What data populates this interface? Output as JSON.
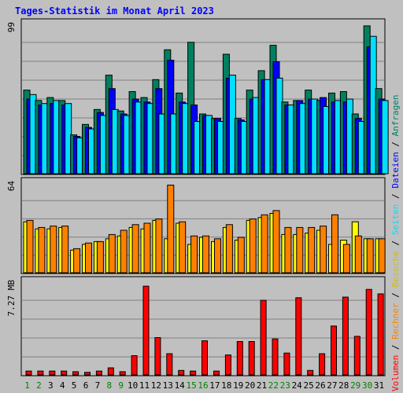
{
  "chart_data": {
    "type": "bar",
    "title": "Tages-Statistik im Monat April 2023",
    "categories": [
      "1",
      "2",
      "3",
      "4",
      "5",
      "6",
      "7",
      "8",
      "9",
      "10",
      "11",
      "12",
      "13",
      "14",
      "15",
      "16",
      "17",
      "18",
      "19",
      "20",
      "21",
      "22",
      "23",
      "24",
      "25",
      "26",
      "27",
      "28",
      "29",
      "30",
      "31"
    ],
    "weekend_categories": [
      "1",
      "2",
      "8",
      "9",
      "15",
      "16",
      "22",
      "23",
      "29",
      "30"
    ],
    "panels": [
      {
        "id": "top",
        "max_label": "99",
        "ylim": [
          0,
          99
        ],
        "series": [
          {
            "name": "Anfragen",
            "color": "#008060",
            "values": [
              56,
              49,
              51,
              49,
              26,
              33,
              43,
              66,
              42,
              55,
              51,
              63,
              83,
              54,
              88,
              40,
              37,
              80,
              37,
              56,
              69,
              86,
              48,
              49,
              56,
              49,
              54,
              55,
              40,
              99,
              57
            ]
          },
          {
            "name": "Dateien",
            "color": "#0000ff",
            "values": [
              50,
              46,
              47,
              46,
              25,
              31,
              41,
              57,
              40,
              50,
              48,
              57,
              76,
              48,
              46,
              39,
              37,
              64,
              36,
              50,
              63,
              75,
              46,
              49,
              50,
              51,
              48,
              48,
              37,
              85,
              50
            ]
          },
          {
            "name": "Seiten",
            "color": "#00e0ff",
            "values": [
              53,
              47,
              49,
              47,
              24,
              30,
              39,
              43,
              39,
              48,
              47,
              40,
              40,
              47,
              35,
              39,
              35,
              66,
              35,
              51,
              63,
              64,
              46,
              47,
              50,
              45,
              49,
              50,
              35,
              92,
              49
            ]
          }
        ]
      },
      {
        "id": "middle",
        "max_label": "64",
        "ylim": [
          0,
          64
        ],
        "series": [
          {
            "name": "Besuche",
            "color": "#ffff00",
            "values": [
              36,
              31,
              31,
              32,
              16,
              20,
              22,
              24,
              26,
              32,
              31,
              37,
              24,
              35,
              20,
              25,
              22,
              32,
              23,
              37,
              39,
              42,
              27,
              27,
              28,
              30,
              20,
              23,
              36,
              24,
              24
            ]
          },
          {
            "name": "Rechner",
            "color": "#ff8000",
            "values": [
              37,
              32,
              33,
              33,
              17,
              21,
              22,
              27,
              30,
              34,
              35,
              38,
              62,
              36,
              26,
              26,
              24,
              34,
              25,
              38,
              41,
              44,
              32,
              32,
              32,
              33,
              41,
              20,
              26,
              24,
              24
            ]
          }
        ]
      },
      {
        "id": "bottom",
        "max_label": "7.27 MB",
        "ylim": [
          0,
          7.27
        ],
        "series": [
          {
            "name": "Volumen",
            "color": "#ff0000",
            "values": [
              0.3,
              0.3,
              0.3,
              0.3,
              0.25,
              0.2,
              0.3,
              0.55,
              0.25,
              1.5,
              6.9,
              2.9,
              1.65,
              0.35,
              0.3,
              2.65,
              0.3,
              1.55,
              2.6,
              2.6,
              5.8,
              2.8,
              1.7,
              6.0,
              0.35,
              1.65,
              3.8,
              6.05,
              3.0,
              6.65,
              6.3
            ]
          }
        ]
      }
    ],
    "legend_right": [
      "Volumen",
      "Rechner",
      "Besuche",
      "Seiten",
      "Dateien",
      "Anfragen"
    ],
    "legend_separator": " / ",
    "legend_placement": "right-vertical",
    "grid": true
  },
  "colors": {
    "background": "#c0c0c0",
    "plot_background": "#c0c0c0",
    "grid": "#808080",
    "title": "#0000ff",
    "weekday_label": "#000000",
    "weekend_label": "#008000",
    "bar_outline": "#000000"
  }
}
